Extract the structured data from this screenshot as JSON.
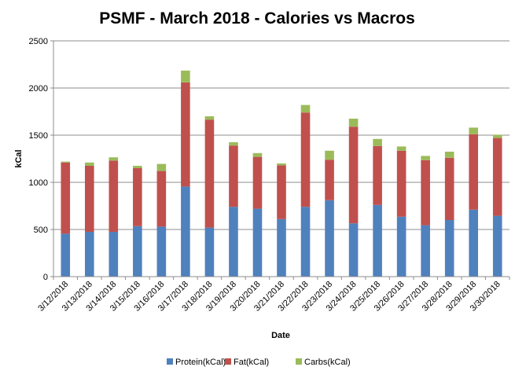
{
  "chart_data": {
    "type": "bar",
    "stacked": true,
    "title": "PSMF - March 2018 - Calories vs Macros",
    "xlabel": "Date",
    "ylabel": "kCal",
    "ylim": [
      0,
      2500
    ],
    "yticks": [
      0,
      500,
      1000,
      1500,
      2000,
      2500
    ],
    "grid": true,
    "legend_position": "bottom",
    "categories": [
      "3/12/2018",
      "3/13/2018",
      "3/14/2018",
      "3/15/2018",
      "3/16/2018",
      "3/17/2018",
      "3/18/2018",
      "3/19/2018",
      "3/20/2018",
      "3/21/2018",
      "3/22/2018",
      "3/23/2018",
      "3/24/2018",
      "3/25/2018",
      "3/26/2018",
      "3/27/2018",
      "3/28/2018",
      "3/29/2018",
      "3/30/2018"
    ],
    "series": [
      {
        "name": "Protein(kCal)",
        "color": "#4f81bd",
        "values": [
          455,
          475,
          475,
          535,
          530,
          955,
          520,
          740,
          720,
          610,
          740,
          810,
          565,
          760,
          635,
          545,
          600,
          710,
          645
        ]
      },
      {
        "name": "Fat(kCal)",
        "color": "#c0504d",
        "values": [
          755,
          700,
          755,
          615,
          590,
          1105,
          1145,
          650,
          550,
          570,
          1000,
          430,
          1025,
          625,
          700,
          690,
          660,
          800,
          825
        ]
      },
      {
        "name": "Carbs(kCal)",
        "color": "#9bbb59",
        "values": [
          10,
          35,
          35,
          25,
          75,
          125,
          35,
          35,
          40,
          20,
          80,
          95,
          85,
          75,
          45,
          45,
          65,
          70,
          35
        ]
      }
    ]
  }
}
